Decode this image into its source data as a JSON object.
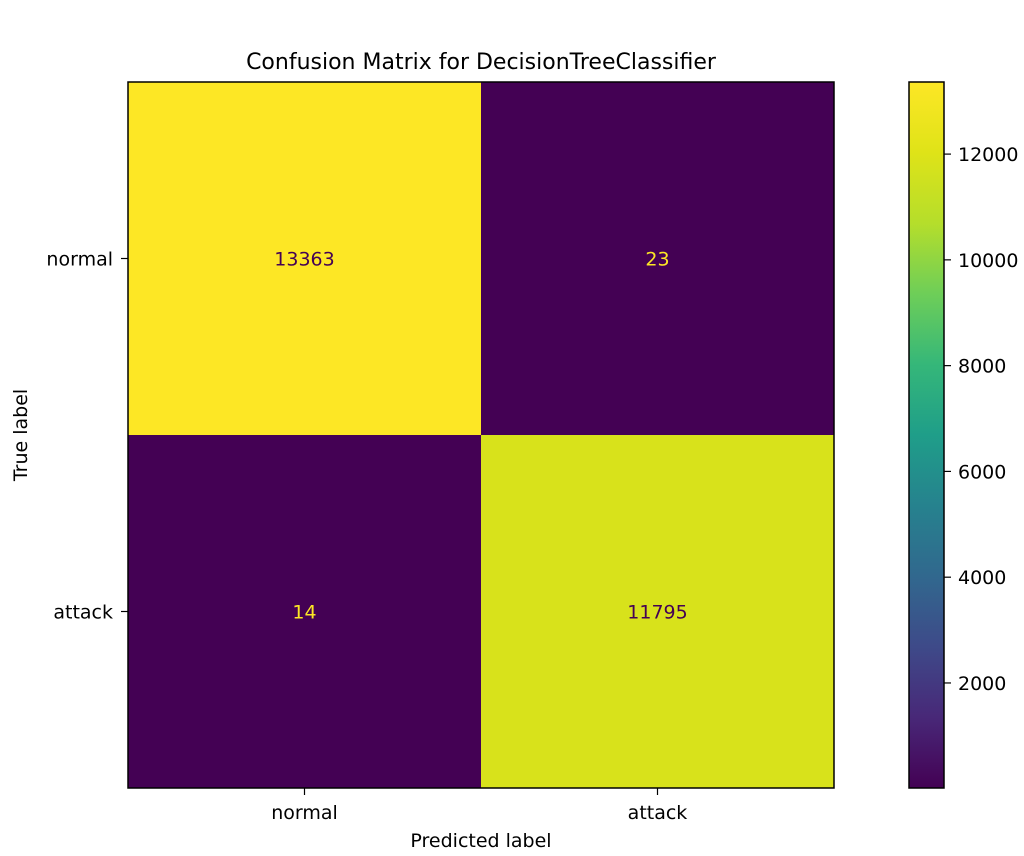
{
  "chart_data": {
    "type": "heatmap",
    "title": "Confusion Matrix for DecisionTreeClassifier",
    "xlabel": "Predicted label",
    "ylabel": "True label",
    "x_categories": [
      "normal",
      "attack"
    ],
    "y_categories": [
      "normal",
      "attack"
    ],
    "values": [
      [
        13363,
        23
      ],
      [
        14,
        11795
      ]
    ],
    "colormap": "viridis",
    "color_range": [
      14,
      13363
    ],
    "colorbar_ticks": [
      2000,
      4000,
      6000,
      8000,
      10000,
      12000
    ],
    "cell_text_colors": {
      "dark_bg": "#fde725",
      "light_bg": "#440154"
    }
  }
}
